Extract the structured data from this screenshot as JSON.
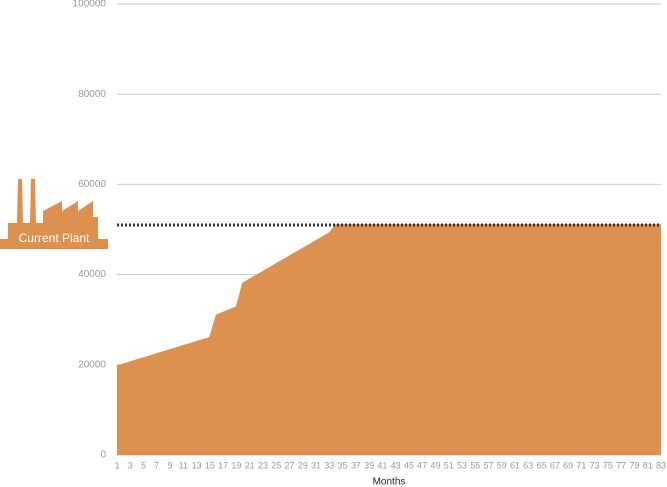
{
  "chart_data": {
    "type": "area",
    "x": [
      1,
      15,
      16,
      19,
      20,
      33,
      34,
      83
    ],
    "values": [
      19700,
      26000,
      31000,
      32800,
      38100,
      49200,
      51000,
      51000
    ],
    "color": "#dc9150",
    "xlim": [
      1,
      83
    ],
    "xticks": [
      1,
      3,
      5,
      7,
      9,
      11,
      13,
      15,
      17,
      19,
      21,
      23,
      25,
      27,
      29,
      31,
      33,
      35,
      37,
      39,
      41,
      43,
      45,
      47,
      49,
      51,
      53,
      55,
      57,
      59,
      61,
      63,
      65,
      67,
      69,
      71,
      73,
      75,
      77,
      79,
      81,
      83
    ],
    "ylim": [
      0,
      100000
    ],
    "yticks": [
      0,
      20000,
      40000,
      60000,
      80000,
      100000
    ],
    "x_label": "Months",
    "grid": true,
    "reference_line": {
      "value": 51000,
      "label": "Current Plant",
      "color": "#dc9150"
    }
  }
}
